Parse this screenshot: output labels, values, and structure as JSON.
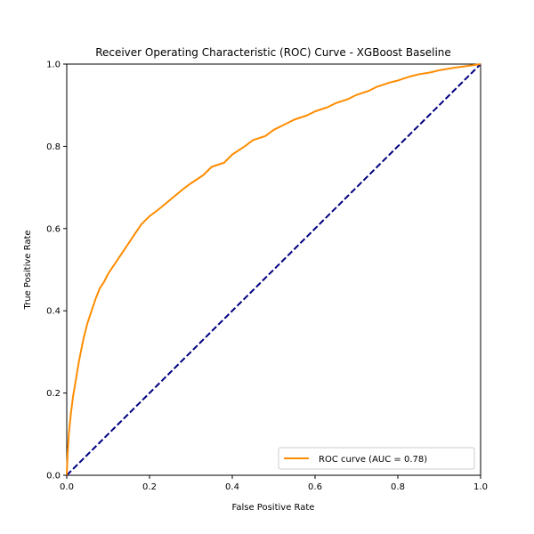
{
  "chart_data": {
    "type": "line",
    "title": "Receiver Operating Characteristic (ROC) Curve - XGBoost Baseline",
    "xlabel": "False Positive Rate",
    "ylabel": "True Positive Rate",
    "xlim": [
      0.0,
      1.0
    ],
    "ylim": [
      0.0,
      1.0
    ],
    "x_ticks": [
      "0.0",
      "0.2",
      "0.4",
      "0.6",
      "0.8",
      "1.0"
    ],
    "y_ticks": [
      "0.0",
      "0.2",
      "0.4",
      "0.6",
      "0.8",
      "1.0"
    ],
    "grid": false,
    "legend_position": "lower-right",
    "series": [
      {
        "name": "ROC curve (AUC = 0.78)",
        "color": "#ff8c00",
        "style": "solid",
        "x": [
          0.0,
          0.002,
          0.005,
          0.01,
          0.015,
          0.02,
          0.03,
          0.04,
          0.05,
          0.06,
          0.07,
          0.08,
          0.09,
          0.1,
          0.12,
          0.14,
          0.16,
          0.18,
          0.2,
          0.22,
          0.25,
          0.28,
          0.3,
          0.33,
          0.35,
          0.38,
          0.4,
          0.43,
          0.45,
          0.48,
          0.5,
          0.53,
          0.55,
          0.58,
          0.6,
          0.63,
          0.65,
          0.68,
          0.7,
          0.73,
          0.75,
          0.78,
          0.8,
          0.83,
          0.85,
          0.88,
          0.9,
          0.93,
          0.95,
          0.98,
          1.0
        ],
        "y": [
          0.0,
          0.05,
          0.1,
          0.15,
          0.19,
          0.22,
          0.28,
          0.33,
          0.37,
          0.4,
          0.43,
          0.455,
          0.47,
          0.49,
          0.52,
          0.55,
          0.58,
          0.61,
          0.63,
          0.645,
          0.67,
          0.695,
          0.71,
          0.73,
          0.75,
          0.76,
          0.78,
          0.8,
          0.815,
          0.825,
          0.84,
          0.855,
          0.865,
          0.875,
          0.885,
          0.895,
          0.905,
          0.915,
          0.925,
          0.935,
          0.945,
          0.955,
          0.96,
          0.97,
          0.975,
          0.98,
          0.985,
          0.99,
          0.993,
          0.997,
          1.0
        ]
      },
      {
        "name": "",
        "color": "#000080",
        "style": "dashed",
        "x": [
          0.0,
          1.0
        ],
        "y": [
          0.0,
          1.0
        ]
      }
    ]
  }
}
